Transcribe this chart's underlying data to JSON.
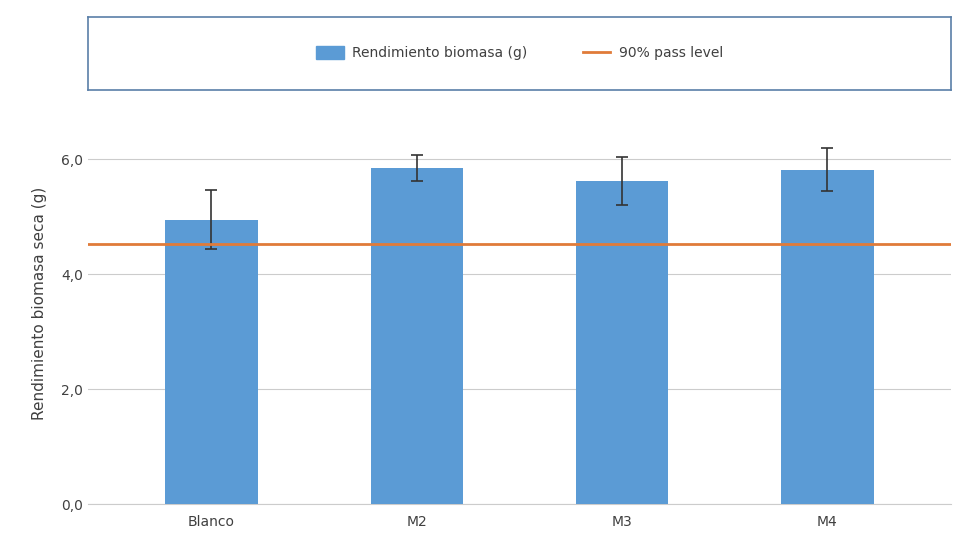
{
  "categories": [
    "Blanco",
    "M2",
    "M3",
    "M4"
  ],
  "values": [
    4.95,
    5.85,
    5.62,
    5.82
  ],
  "errors": [
    0.52,
    0.22,
    0.42,
    0.38
  ],
  "bar_color": "#5B9BD5",
  "pass_level": 4.52,
  "pass_level_color": "#E07B39",
  "pass_level_label": "90% pass level",
  "bar_label": "Rendimiento biomasa (g)",
  "ylabel": "Rendimiento biomasa seca (g)",
  "ylim": [
    0,
    7.0
  ],
  "yticks": [
    0.0,
    2.0,
    4.0,
    6.0
  ],
  "ytick_labels": [
    "0,0",
    "2,0",
    "4,0",
    "6,0"
  ],
  "bar_width": 0.45,
  "legend_fontsize": 10,
  "ylabel_fontsize": 11,
  "tick_fontsize": 10,
  "background_color": "#FFFFFF",
  "grid_color": "#CCCCCC",
  "legend_box_color": "#5A7FA8"
}
